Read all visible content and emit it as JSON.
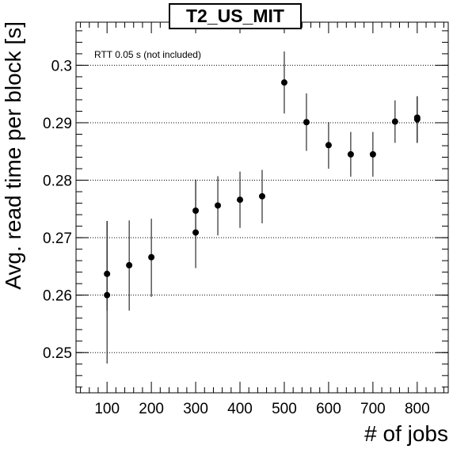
{
  "chart_data": {
    "type": "scatter",
    "title": "T2_US_MIT",
    "xlabel": "# of jobs",
    "ylabel": "Avg. read time per block [s]",
    "annotation": "RTT 0.05 s (not included)",
    "xlim": [
      30,
      870
    ],
    "ylim": [
      0.243,
      0.3075
    ],
    "x_ticks": [
      100,
      200,
      300,
      400,
      500,
      600,
      700,
      800
    ],
    "y_ticks": [
      0.25,
      0.26,
      0.27,
      0.28,
      0.29,
      0.3
    ],
    "y_tick_labels": [
      "0.25",
      "0.26",
      "0.27",
      "0.28",
      "0.29",
      "0.3"
    ],
    "grid": "horizontal dotted",
    "marker_color": "#000000",
    "points": [
      {
        "x": 100,
        "y": 0.2637,
        "err_low": 0.2573,
        "err_high": 0.2729
      },
      {
        "x": 100,
        "y": 0.26,
        "err_low": 0.2481,
        "err_high": 0.2729
      },
      {
        "x": 150,
        "y": 0.2652,
        "err_low": 0.2573,
        "err_high": 0.273
      },
      {
        "x": 200,
        "y": 0.2666,
        "err_low": 0.2597,
        "err_high": 0.2733
      },
      {
        "x": 300,
        "y": 0.2747,
        "err_low": 0.2703,
        "err_high": 0.2801
      },
      {
        "x": 300,
        "y": 0.2709,
        "err_low": 0.2647,
        "err_high": 0.2801
      },
      {
        "x": 350,
        "y": 0.2756,
        "err_low": 0.2704,
        "err_high": 0.2807
      },
      {
        "x": 400,
        "y": 0.2766,
        "err_low": 0.2717,
        "err_high": 0.2815
      },
      {
        "x": 450,
        "y": 0.2772,
        "err_low": 0.2725,
        "err_high": 0.2818
      },
      {
        "x": 500,
        "y": 0.297,
        "err_low": 0.2916,
        "err_high": 0.3024
      },
      {
        "x": 550,
        "y": 0.2901,
        "err_low": 0.2851,
        "err_high": 0.2951
      },
      {
        "x": 600,
        "y": 0.2861,
        "err_low": 0.282,
        "err_high": 0.2901
      },
      {
        "x": 650,
        "y": 0.2845,
        "err_low": 0.2806,
        "err_high": 0.2884
      },
      {
        "x": 700,
        "y": 0.2845,
        "err_low": 0.2806,
        "err_high": 0.2884
      },
      {
        "x": 750,
        "y": 0.2902,
        "err_low": 0.2865,
        "err_high": 0.2939
      },
      {
        "x": 800,
        "y": 0.2909,
        "err_low": 0.2865,
        "err_high": 0.2946
      },
      {
        "x": 800,
        "y": 0.2906,
        "err_low": 0.2865,
        "err_high": 0.2946
      }
    ]
  }
}
